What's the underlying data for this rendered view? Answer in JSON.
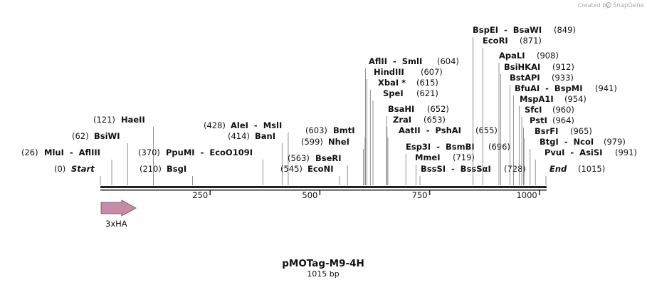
{
  "map": {
    "credit": "Created by",
    "brand": "SnapGene",
    "title": "pMOTag-M9-4H",
    "length": "1015 bp",
    "ruler": {
      "lim": [
        0,
        1015
      ],
      "ticks": [
        250,
        500,
        750,
        1000
      ]
    },
    "features": [
      {
        "name": "3xHA"
      }
    ],
    "sites": [
      {
        "label": "Start",
        "position": {
          "value": 0,
          "label": "(0)"
        }
      },
      {
        "label": "MluI  -  AflIII",
        "position": {
          "value": 26,
          "label": "(26)"
        }
      },
      {
        "label": "BsiWI",
        "position": {
          "value": 62,
          "label": "(62)"
        }
      },
      {
        "label": "HaeII",
        "position": {
          "value": 121,
          "label": "(121)"
        }
      },
      {
        "label": "BsgI",
        "position": {
          "value": 210,
          "label": "(210)"
        }
      },
      {
        "label": "PpuMI  -  EcoO109I",
        "position": {
          "value": 370,
          "label": "(370)"
        }
      },
      {
        "label": "BanI",
        "position": {
          "value": 414,
          "label": "(414)"
        }
      },
      {
        "label": "AleI  -  MslI",
        "position": {
          "value": 428,
          "label": "(428)"
        }
      },
      {
        "label": "EcoNI",
        "position": {
          "value": 545,
          "label": "(545)"
        }
      },
      {
        "label": "BseRI",
        "position": {
          "value": 563,
          "label": "(563)"
        }
      },
      {
        "label": "NheI",
        "position": {
          "value": 599,
          "label": "(599)"
        }
      },
      {
        "label": "BmtI",
        "position": {
          "value": 603,
          "label": "(603)"
        }
      },
      {
        "label": "AflII  -  SmlI",
        "position": {
          "value": 604,
          "label": "(604)"
        }
      },
      {
        "label": "HindIII",
        "position": {
          "value": 607,
          "label": "(607)"
        }
      },
      {
        "label": "XbaI *",
        "position": {
          "value": 615,
          "label": "(615)"
        }
      },
      {
        "label": "SpeI",
        "position": {
          "value": 621,
          "label": "(621)"
        }
      },
      {
        "label": "BsaHI",
        "position": {
          "value": 652,
          "label": "(652)"
        }
      },
      {
        "label": "ZraI",
        "position": {
          "value": 653,
          "label": "(653)"
        }
      },
      {
        "label": "AatII  -  PshAI",
        "position": {
          "value": 655,
          "label": "(655)"
        }
      },
      {
        "label": "Esp3I  -  BsmBI",
        "position": {
          "value": 696,
          "label": "(696)"
        }
      },
      {
        "label": "MmeI",
        "position": {
          "value": 719,
          "label": "(719)"
        }
      },
      {
        "label": "BssSI  -  BssSαI",
        "position": {
          "value": 728,
          "label": "(728)"
        }
      },
      {
        "label": "BspEI  -  BsaWI",
        "position": {
          "value": 849,
          "label": "(849)"
        }
      },
      {
        "label": "EcoRI",
        "position": {
          "value": 871,
          "label": "(871)"
        }
      },
      {
        "label": "ApaLI",
        "position": {
          "value": 908,
          "label": "(908)"
        }
      },
      {
        "label": "BsiHKAI",
        "position": {
          "value": 912,
          "label": "(912)"
        }
      },
      {
        "label": "BstAPI",
        "position": {
          "value": 933,
          "label": "(933)"
        }
      },
      {
        "label": "BfuAI  -  BspMI",
        "position": {
          "value": 941,
          "label": "(941)"
        }
      },
      {
        "label": "MspA1I",
        "position": {
          "value": 954,
          "label": "(954)"
        }
      },
      {
        "label": "SfcI",
        "position": {
          "value": 960,
          "label": "(960)"
        }
      },
      {
        "label": "PstI",
        "position": {
          "value": 964,
          "label": "(964)"
        }
      },
      {
        "label": "BsrFI",
        "position": {
          "value": 965,
          "label": "(965)"
        }
      },
      {
        "label": "BtgI  -  NcoI",
        "position": {
          "value": 979,
          "label": "(979)"
        }
      },
      {
        "label": "PvuI  -  AsiSI",
        "position": {
          "value": 991,
          "label": "(991)"
        }
      },
      {
        "label": "End",
        "position": {
          "value": 1015,
          "label": "(1015)"
        }
      }
    ]
  }
}
